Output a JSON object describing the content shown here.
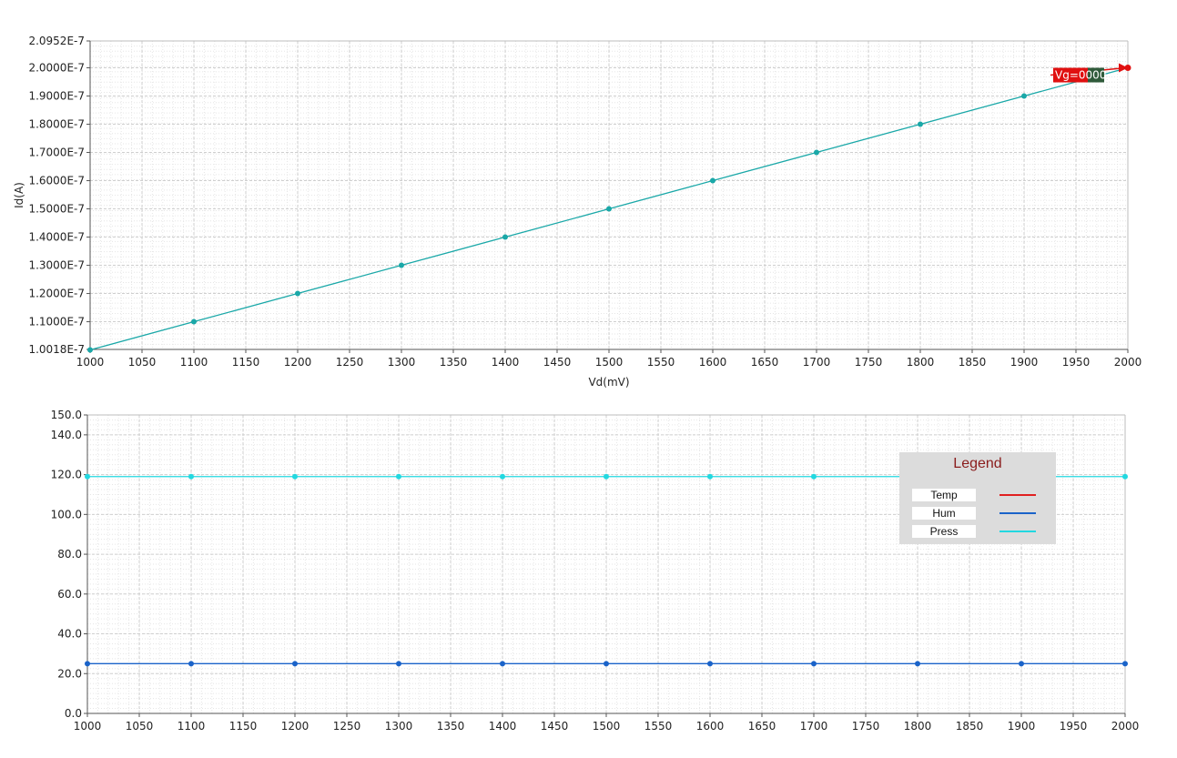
{
  "chart_data": [
    {
      "type": "line",
      "xlabel": "Vd(mV)",
      "ylabel": "Id(A)",
      "xlim": [
        1000,
        2000
      ],
      "ylim": [
        1.0018e-07,
        2.0952e-07
      ],
      "grid": true,
      "x_ticks": [
        "1000",
        "1050",
        "1100",
        "1150",
        "1200",
        "1250",
        "1300",
        "1350",
        "1400",
        "1450",
        "1500",
        "1550",
        "1600",
        "1650",
        "1700",
        "1750",
        "1800",
        "1850",
        "1900",
        "1950",
        "2000"
      ],
      "y_ticks": [
        {
          "value": 1.0018e-07,
          "label": "1.0018E-7"
        },
        {
          "value": 1.1e-07,
          "label": "1.1000E-7"
        },
        {
          "value": 1.2e-07,
          "label": "1.2000E-7"
        },
        {
          "value": 1.3e-07,
          "label": "1.3000E-7"
        },
        {
          "value": 1.4e-07,
          "label": "1.4000E-7"
        },
        {
          "value": 1.5e-07,
          "label": "1.5000E-7"
        },
        {
          "value": 1.6e-07,
          "label": "1.6000E-7"
        },
        {
          "value": 1.7e-07,
          "label": "1.7000E-7"
        },
        {
          "value": 1.8e-07,
          "label": "1.8000E-7"
        },
        {
          "value": 1.9e-07,
          "label": "1.9000E-7"
        },
        {
          "value": 2e-07,
          "label": "2.0000E-7"
        },
        {
          "value": 2.0952e-07,
          "label": "2.0952E-7"
        }
      ],
      "series": [
        {
          "color": "#1aa8a8",
          "x": [
            1000,
            1100,
            1200,
            1300,
            1400,
            1500,
            1600,
            1700,
            1800,
            1900,
            2000
          ],
          "y": [
            1e-07,
            1.1e-07,
            1.2e-07,
            1.3e-07,
            1.4e-07,
            1.5e-07,
            1.6e-07,
            1.7e-07,
            1.8e-07,
            1.9e-07,
            2e-07
          ]
        }
      ],
      "annotation": {
        "label": "Vg=0000",
        "x": 2000,
        "y": 2e-07,
        "color": "#e01010"
      }
    },
    {
      "type": "line",
      "xlim": [
        1000,
        2000
      ],
      "ylim": [
        0,
        150
      ],
      "grid": true,
      "x_ticks": [
        "1000",
        "1050",
        "1100",
        "1150",
        "1200",
        "1250",
        "1300",
        "1350",
        "1400",
        "1450",
        "1500",
        "1550",
        "1600",
        "1650",
        "1700",
        "1750",
        "1800",
        "1850",
        "1900",
        "1950",
        "2000"
      ],
      "y_ticks": [
        {
          "value": 0,
          "label": "0.0"
        },
        {
          "value": 20,
          "label": "20.0"
        },
        {
          "value": 40,
          "label": "40.0"
        },
        {
          "value": 60,
          "label": "60.0"
        },
        {
          "value": 80,
          "label": "80.0"
        },
        {
          "value": 100,
          "label": "100.0"
        },
        {
          "value": 120,
          "label": "120.0"
        },
        {
          "value": 140,
          "label": "140.0"
        },
        {
          "value": 150,
          "label": "150.0"
        }
      ],
      "series": [
        {
          "name": "Temp",
          "color": "#e02020",
          "x": [],
          "y": []
        },
        {
          "name": "Hum",
          "color": "#1a63c9",
          "x": [
            1000,
            1100,
            1200,
            1300,
            1400,
            1500,
            1600,
            1700,
            1800,
            1900,
            2000
          ],
          "y": [
            25,
            25,
            25,
            25,
            25,
            25,
            25,
            25,
            25,
            25,
            25
          ]
        },
        {
          "name": "Press",
          "color": "#22d8e0",
          "x": [
            1000,
            1100,
            1200,
            1300,
            1400,
            1500,
            1600,
            1700,
            1800,
            1900,
            2000
          ],
          "y": [
            119,
            119,
            119,
            119,
            119,
            119,
            119,
            119,
            119,
            119,
            119
          ]
        }
      ],
      "legend": {
        "title": "Legend",
        "placement": "top-right"
      }
    }
  ]
}
